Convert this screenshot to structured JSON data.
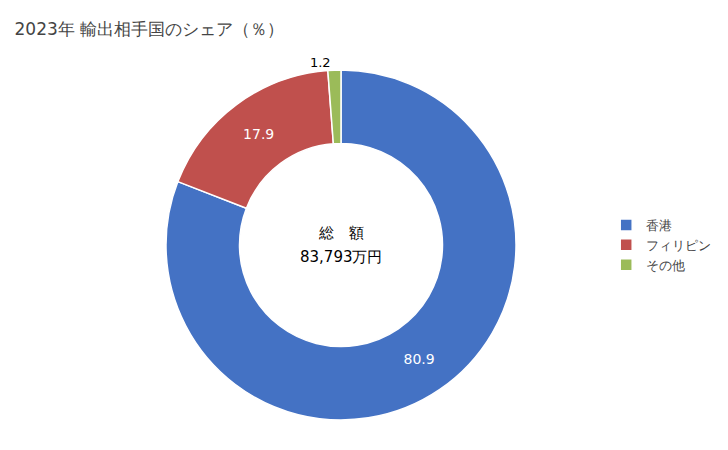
{
  "chart_data": {
    "type": "pie",
    "title": "2023年 輸出相手国のシェア（％）",
    "categories": [
      "香港",
      "フィリピン",
      "その他"
    ],
    "values": [
      80.9,
      17.9,
      1.2
    ],
    "colors": [
      "#4472C4",
      "#C0504D",
      "#9BBB59"
    ],
    "data_labels": true,
    "annotations": [
      "総　額",
      "83,793万円"
    ],
    "legend": "right"
  }
}
